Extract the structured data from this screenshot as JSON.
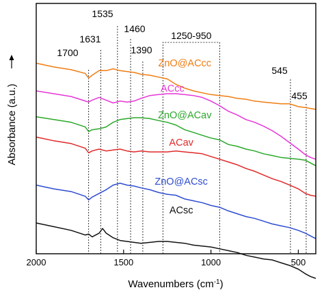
{
  "chart_data": {
    "type": "line",
    "title": "",
    "xlabel": "Wavenumbers (cm",
    "xlabel_sup": "-1",
    "xlabel_close": ")",
    "ylabel": "Absorbance (a.u.)",
    "xlim": [
      2000,
      400
    ],
    "x_reversed": true,
    "x_ticks": [
      2000,
      1500,
      1000,
      500
    ],
    "y_ticks_shown": false,
    "grid": false,
    "legend": "none",
    "annotations": [
      {
        "label": "1700",
        "wavenumber": 1700
      },
      {
        "label": "1631",
        "wavenumber": 1631
      },
      {
        "label": "1535",
        "wavenumber": 1535
      },
      {
        "label": "1460",
        "wavenumber": 1460
      },
      {
        "label": "1390",
        "wavenumber": 1390
      },
      {
        "label": "1250-950",
        "range": [
          1275,
          950
        ]
      },
      {
        "label": "545",
        "wavenumber": 545
      },
      {
        "label": "455",
        "wavenumber": 455
      }
    ],
    "series": [
      {
        "name": "ZnO@ACcc",
        "color": "#f07c10",
        "x": [
          2000,
          1900,
          1800,
          1720,
          1700,
          1680,
          1640,
          1600,
          1560,
          1520,
          1480,
          1440,
          1400,
          1350,
          1300,
          1250,
          1200,
          1150,
          1100,
          1050,
          1000,
          950,
          900,
          850,
          800,
          750,
          700,
          650,
          600,
          550,
          500,
          460,
          430,
          400
        ],
        "y": [
          8.65,
          8.45,
          8.3,
          8.1,
          7.85,
          8.0,
          8.25,
          8.25,
          8.35,
          8.25,
          8.2,
          8.15,
          8.05,
          8.0,
          7.9,
          7.8,
          7.5,
          7.3,
          7.15,
          7.05,
          6.95,
          6.9,
          6.85,
          6.75,
          6.7,
          6.6,
          6.55,
          6.5,
          6.45,
          6.45,
          6.3,
          6.25,
          6.2,
          6.15
        ]
      },
      {
        "name": "ACcc",
        "color": "#e635d8",
        "x": [
          2000,
          1900,
          1800,
          1700,
          1680,
          1640,
          1600,
          1560,
          1520,
          1480,
          1440,
          1400,
          1350,
          1300,
          1250,
          1200,
          1150,
          1100,
          1050,
          1000,
          950,
          900,
          850,
          800,
          750,
          700,
          650,
          600,
          550,
          500,
          460,
          430,
          400
        ],
        "y": [
          7.15,
          7.0,
          6.85,
          6.55,
          6.65,
          6.8,
          6.65,
          6.5,
          6.6,
          6.55,
          6.6,
          6.75,
          6.9,
          6.95,
          7.0,
          7.0,
          6.95,
          6.9,
          6.8,
          6.6,
          6.35,
          6.05,
          5.85,
          5.6,
          5.45,
          5.25,
          5.0,
          4.7,
          4.35,
          4.0,
          3.7,
          3.55,
          3.45
        ]
      },
      {
        "name": "ZnO@ACav",
        "color": "#2aa82a",
        "x": [
          2000,
          1900,
          1800,
          1720,
          1700,
          1680,
          1640,
          1600,
          1560,
          1520,
          1480,
          1440,
          1400,
          1350,
          1300,
          1250,
          1200,
          1150,
          1100,
          1050,
          1000,
          950,
          900,
          850,
          800,
          750,
          700,
          650,
          600,
          550,
          500,
          460,
          430,
          400
        ],
        "y": [
          5.75,
          5.6,
          5.45,
          5.2,
          4.95,
          5.05,
          5.1,
          5.2,
          5.45,
          5.6,
          5.65,
          5.7,
          5.7,
          5.65,
          5.55,
          5.45,
          5.3,
          5.05,
          4.9,
          4.75,
          4.6,
          4.5,
          4.25,
          4.15,
          4.0,
          3.9,
          3.75,
          3.65,
          3.55,
          3.5,
          3.45,
          3.4,
          3.25,
          3.1
        ]
      },
      {
        "name": "ACav",
        "color": "#e02828",
        "x": [
          2000,
          1900,
          1800,
          1720,
          1700,
          1680,
          1640,
          1600,
          1560,
          1520,
          1480,
          1440,
          1400,
          1350,
          1300,
          1250,
          1200,
          1150,
          1100,
          1050,
          1000,
          950,
          900,
          850,
          800,
          750,
          700,
          650,
          600,
          550,
          500,
          460,
          430,
          400
        ],
        "y": [
          4.65,
          4.45,
          4.3,
          4.05,
          3.8,
          3.9,
          4.0,
          3.9,
          3.95,
          4.0,
          3.9,
          3.85,
          3.9,
          3.85,
          3.85,
          3.85,
          3.9,
          3.85,
          3.8,
          3.75,
          3.6,
          3.45,
          3.3,
          3.15,
          2.95,
          2.8,
          2.6,
          2.4,
          2.25,
          2.05,
          1.85,
          1.6,
          1.5,
          1.45
        ]
      },
      {
        "name": "ZnO@ACsc",
        "color": "#2d4cd1",
        "x": [
          2000,
          1900,
          1800,
          1720,
          1700,
          1680,
          1640,
          1600,
          1560,
          1520,
          1480,
          1440,
          1400,
          1350,
          1300,
          1250,
          1200,
          1150,
          1100,
          1050,
          1000,
          950,
          900,
          850,
          800,
          750,
          700,
          650,
          600,
          550,
          500,
          460,
          430,
          400
        ],
        "y": [
          2.05,
          1.85,
          1.7,
          1.45,
          1.25,
          1.4,
          1.6,
          1.8,
          2.05,
          2.15,
          2.05,
          2.0,
          1.9,
          1.8,
          1.65,
          1.55,
          1.5,
          1.3,
          1.2,
          1.1,
          0.95,
          0.85,
          0.65,
          0.5,
          0.35,
          0.25,
          0.1,
          -0.05,
          -0.15,
          -0.25,
          -0.4,
          -0.55,
          -0.7,
          -0.85
        ]
      },
      {
        "name": "ACsc",
        "color": "#111111",
        "x": [
          2000,
          1900,
          1800,
          1720,
          1700,
          1680,
          1640,
          1620,
          1600,
          1560,
          1520,
          1480,
          1440,
          1400,
          1350,
          1300,
          1250,
          1200,
          1150,
          1100,
          1050,
          1000,
          950,
          900,
          850,
          800,
          750,
          700,
          650,
          600,
          550,
          500,
          460,
          430,
          400
        ],
        "y": [
          0.0,
          -0.2,
          -0.4,
          -0.65,
          -0.6,
          -0.75,
          -0.55,
          -0.3,
          -0.55,
          -0.8,
          -0.95,
          -1.0,
          -1.05,
          -1.1,
          -1.05,
          -1.0,
          -1.0,
          -1.05,
          -1.1,
          -1.2,
          -1.25,
          -1.3,
          -1.4,
          -1.5,
          -1.6,
          -1.75,
          -1.85,
          -1.95,
          -2.0,
          -2.15,
          -2.3,
          -2.5,
          -2.75,
          -2.9,
          -3.0
        ]
      }
    ]
  }
}
